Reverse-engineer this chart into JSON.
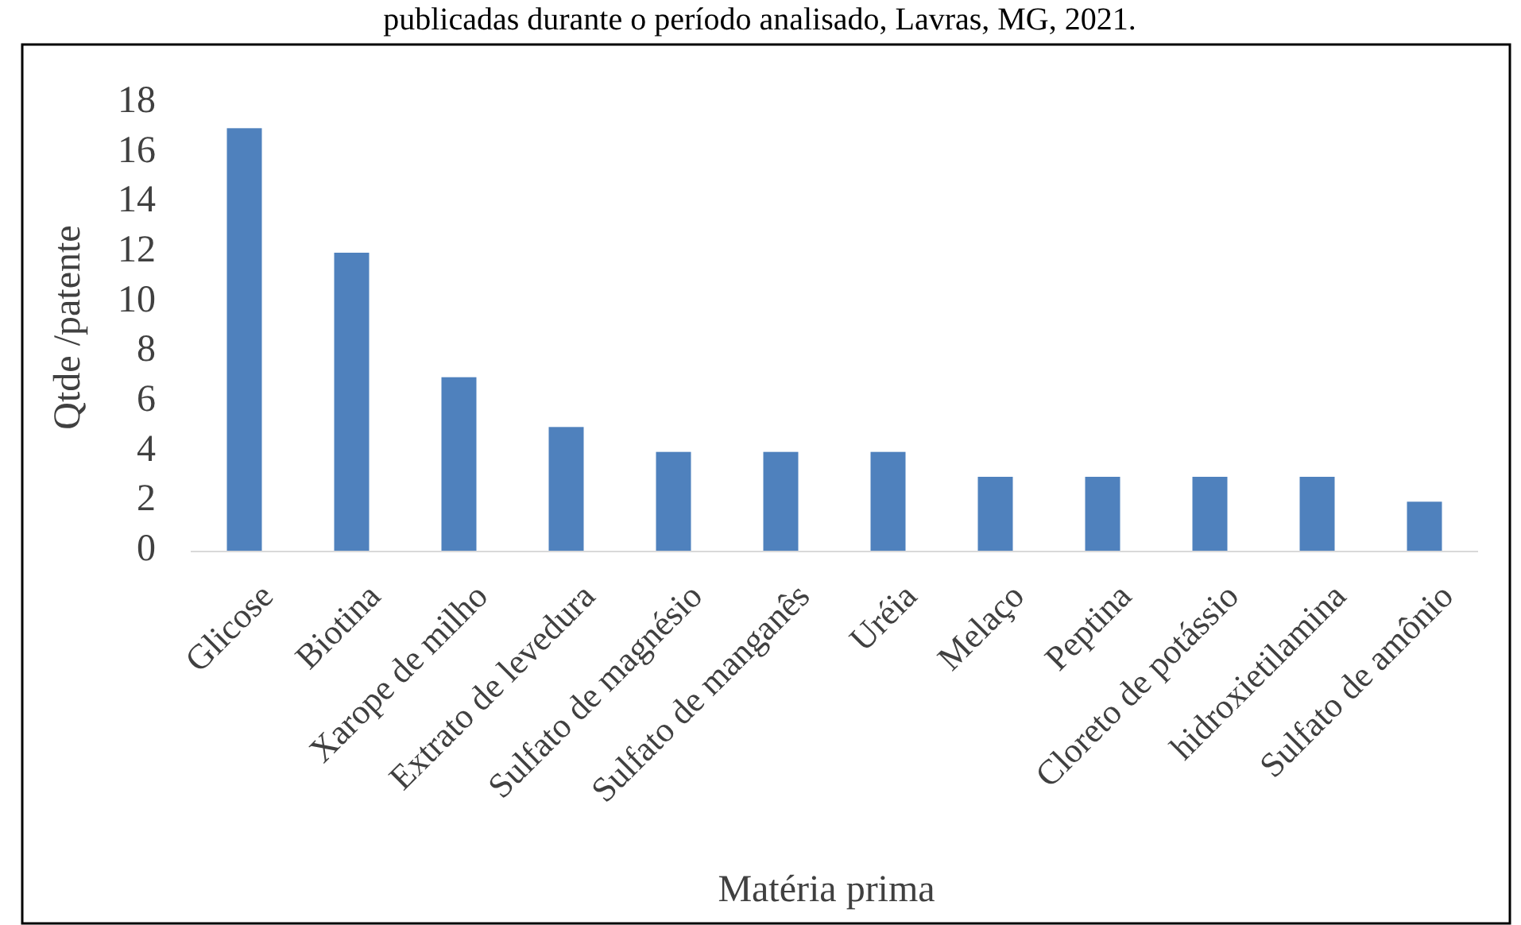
{
  "chart_data": {
    "type": "bar",
    "title": "publicadas durante o período analisado, Lavras, MG, 2021.",
    "xlabel": "Matéria prima",
    "ylabel": "Qtde /patente",
    "categories": [
      "Glicose",
      "Biotina",
      "Xarope de milho",
      "Extrato de levedura",
      "Sulfato de magnésio",
      "Sulfato de manganês",
      "Uréia",
      "Melaço",
      "Peptina",
      "Cloreto de potássio",
      "hidroxietilamina",
      "Sulfato de amônio"
    ],
    "values": [
      17,
      12,
      7,
      5,
      4,
      4,
      4,
      3,
      3,
      3,
      3,
      2
    ],
    "color": "#4f81bd",
    "ylim": [
      0,
      18
    ],
    "yticks": [
      0,
      2,
      4,
      6,
      8,
      10,
      12,
      14,
      16,
      18
    ],
    "grid": false
  }
}
